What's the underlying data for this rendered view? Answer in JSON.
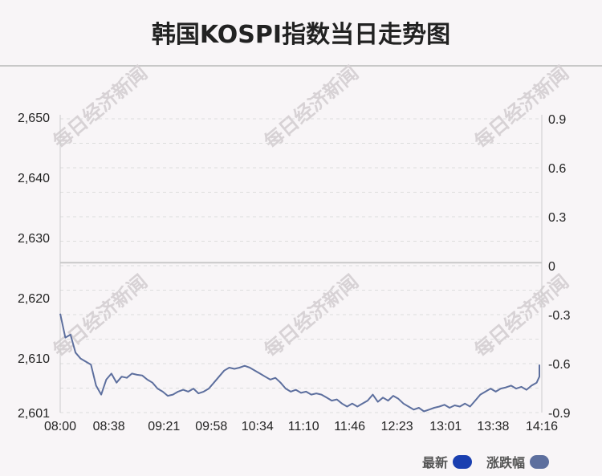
{
  "title": "韩国KOSPI指数当日走势图",
  "watermark": "每日经济新闻",
  "legend": {
    "latest_label": "最新",
    "latest_color": "#1a3fb0",
    "change_label": "涨跌幅",
    "change_color": "#5d6f9e"
  },
  "chart_data": {
    "type": "line",
    "x_ticks": [
      "08:00",
      "08:38",
      "09:21",
      "09:58",
      "10:34",
      "11:10",
      "11:46",
      "12:23",
      "13:01",
      "13:38",
      "14:16"
    ],
    "y_left_ticks": [
      "2,650",
      "2,640",
      "2,630",
      "2,620",
      "2,610",
      "2,601"
    ],
    "y_right_ticks": [
      "0.9",
      "0.6",
      "0.3",
      "0",
      "-0.3",
      "-0.6",
      "-0.9"
    ],
    "ylim_left": [
      2601,
      2650
    ],
    "ylim_right": [
      -0.9,
      0.9
    ],
    "baseline": 2626,
    "line_color": "#5d6f9e",
    "series": [
      {
        "x": [
          "08:00",
          "08:04",
          "08:08",
          "08:12",
          "08:16",
          "08:20",
          "08:24",
          "08:28",
          "08:32",
          "08:36",
          "08:40",
          "08:44",
          "08:48",
          "08:52",
          "08:56",
          "09:00",
          "09:04",
          "09:08",
          "09:12",
          "09:16",
          "09:20",
          "09:24",
          "09:28",
          "09:32",
          "09:36",
          "09:40",
          "09:44",
          "09:48",
          "09:52",
          "09:56",
          "10:00",
          "10:04",
          "10:08",
          "10:12",
          "10:16",
          "10:20",
          "10:24",
          "10:28",
          "10:32",
          "10:36",
          "10:40",
          "10:44",
          "10:48",
          "10:52",
          "10:56",
          "11:00",
          "11:04",
          "11:08",
          "11:12",
          "11:16",
          "11:20",
          "11:24",
          "11:28",
          "11:32",
          "11:36",
          "11:40",
          "11:44",
          "11:48",
          "11:52",
          "11:56",
          "12:00",
          "12:04",
          "12:08",
          "12:12",
          "12:16",
          "12:20",
          "12:24",
          "12:28",
          "12:32",
          "12:36",
          "12:40",
          "12:44",
          "12:48",
          "12:52",
          "12:56",
          "13:00",
          "13:04",
          "13:08",
          "13:12",
          "13:16",
          "13:20",
          "13:24",
          "13:28",
          "13:32",
          "13:36",
          "13:40",
          "13:44",
          "13:48",
          "13:52",
          "13:56",
          "14:00",
          "14:04",
          "14:08",
          "14:12",
          "14:16",
          "14:20"
        ],
        "values": [
          2617.5,
          2613.5,
          2614.0,
          2611.0,
          2610.0,
          2609.5,
          2609.0,
          2605.5,
          2604.0,
          2606.5,
          2607.5,
          2606.0,
          2607.0,
          2606.8,
          2607.5,
          2607.3,
          2607.2,
          2606.5,
          2606.0,
          2605.0,
          2604.5,
          2603.8,
          2604.0,
          2604.5,
          2604.8,
          2604.5,
          2605.0,
          2604.2,
          2604.5,
          2605.0,
          2606.0,
          2607.0,
          2608.0,
          2608.5,
          2608.3,
          2608.5,
          2608.8,
          2608.5,
          2608.0,
          2607.5,
          2607.0,
          2606.5,
          2606.8,
          2606.0,
          2605.0,
          2604.5,
          2604.8,
          2604.3,
          2604.5,
          2604.0,
          2604.2,
          2604.0,
          2603.5,
          2603.0,
          2603.2,
          2602.5,
          2602.0,
          2602.5,
          2602.0,
          2602.5,
          2603.0,
          2604.0,
          2602.8,
          2603.5,
          2603.0,
          2603.8,
          2603.3,
          2602.5,
          2602.0,
          2601.5,
          2601.8,
          2601.2,
          2601.5,
          2601.8,
          2602.0,
          2602.3,
          2601.8,
          2602.2,
          2602.0,
          2602.5,
          2602.0,
          2603.0,
          2604.0,
          2604.5,
          2605.0,
          2604.5,
          2605.0,
          2605.2,
          2605.5,
          2605.0,
          2605.3,
          2604.8,
          2605.5,
          2606.0,
          2607.0,
          2609.0
        ]
      }
    ],
    "grid": true
  }
}
